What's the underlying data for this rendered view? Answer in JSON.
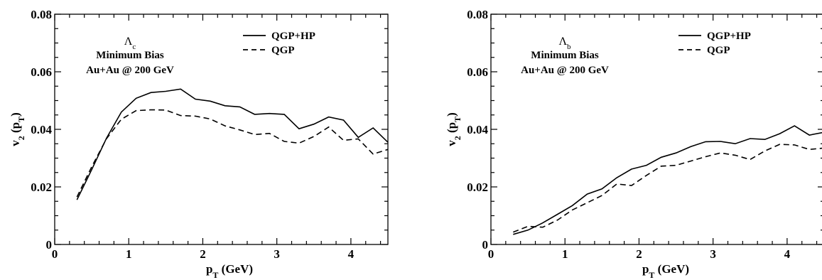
{
  "chart_data": [
    {
      "type": "line",
      "xlabel": "p_T (GeV)",
      "ylabel": "v_2 (p_T)",
      "xlim": [
        0,
        4.5
      ],
      "ylim": [
        0,
        0.08
      ],
      "xticks": [
        "0",
        "1",
        "2",
        "3",
        "4"
      ],
      "yticks": [
        "0",
        "0.02",
        "0.04",
        "0.06",
        "0.08"
      ],
      "grid": false,
      "legend_position": "top-right",
      "annotations": {
        "particle": "Λ",
        "particle_sub": "c",
        "line1": "Minimum Bias",
        "line2": "Au+Au @ 200 GeV"
      },
      "series": [
        {
          "name": "QGP+HP",
          "style": "solid",
          "x": [
            0.3,
            0.5,
            0.7,
            0.9,
            1.1,
            1.3,
            1.5,
            1.7,
            1.9,
            2.1,
            2.3,
            2.5,
            2.7,
            2.9,
            3.1,
            3.3,
            3.5,
            3.7,
            3.9,
            4.1,
            4.3,
            4.5
          ],
          "y": [
            0.0155,
            0.026,
            0.037,
            0.046,
            0.0508,
            0.0528,
            0.0532,
            0.054,
            0.0505,
            0.0498,
            0.0482,
            0.0478,
            0.0452,
            0.0455,
            0.0452,
            0.0402,
            0.0418,
            0.0443,
            0.0432,
            0.0372,
            0.0405,
            0.0355
          ]
        },
        {
          "name": "QGP",
          "style": "dashed",
          "x": [
            0.3,
            0.5,
            0.7,
            0.9,
            1.1,
            1.3,
            1.5,
            1.7,
            1.9,
            2.1,
            2.3,
            2.5,
            2.7,
            2.9,
            3.1,
            3.3,
            3.5,
            3.7,
            3.9,
            4.1,
            4.3,
            4.5
          ],
          "y": [
            0.0165,
            0.027,
            0.0368,
            0.0435,
            0.0465,
            0.0468,
            0.0467,
            0.0448,
            0.0446,
            0.0436,
            0.0412,
            0.0398,
            0.0382,
            0.0386,
            0.0358,
            0.0352,
            0.0375,
            0.0408,
            0.0362,
            0.0367,
            0.0314,
            0.033
          ]
        }
      ]
    },
    {
      "type": "line",
      "xlabel": "p_T (GeV)",
      "ylabel": "v_2 (p_T)",
      "xlim": [
        0,
        4.5
      ],
      "ylim": [
        0,
        0.08
      ],
      "xticks": [
        "0",
        "1",
        "2",
        "3",
        "4"
      ],
      "yticks": [
        "0",
        "0.02",
        "0.04",
        "0.06",
        "0.08"
      ],
      "grid": false,
      "legend_position": "top-right",
      "annotations": {
        "particle": "Λ",
        "particle_sub": "b",
        "line1": "Minimum Bias",
        "line2": "Au+Au @ 200 GeV"
      },
      "series": [
        {
          "name": "QGP+HP",
          "style": "solid",
          "x": [
            0.3,
            0.5,
            0.7,
            0.9,
            1.1,
            1.3,
            1.5,
            1.7,
            1.9,
            2.1,
            2.3,
            2.5,
            2.7,
            2.9,
            3.1,
            3.3,
            3.5,
            3.7,
            3.9,
            4.1,
            4.3,
            4.5
          ],
          "y": [
            0.0035,
            0.005,
            0.0075,
            0.0105,
            0.0135,
            0.0175,
            0.0193,
            0.0232,
            0.0262,
            0.0275,
            0.0303,
            0.0318,
            0.034,
            0.0357,
            0.0358,
            0.035,
            0.0368,
            0.0365,
            0.0385,
            0.0412,
            0.038,
            0.039
          ]
        },
        {
          "name": "QGP",
          "style": "dashed",
          "x": [
            0.3,
            0.5,
            0.7,
            0.9,
            1.1,
            1.3,
            1.5,
            1.7,
            1.9,
            2.1,
            2.3,
            2.5,
            2.7,
            2.9,
            3.1,
            3.3,
            3.5,
            3.7,
            3.9,
            4.1,
            4.3,
            4.5
          ],
          "y": [
            0.0043,
            0.0063,
            0.006,
            0.0085,
            0.012,
            0.0145,
            0.017,
            0.021,
            0.0205,
            0.024,
            0.0272,
            0.0275,
            0.029,
            0.0305,
            0.0318,
            0.031,
            0.0295,
            0.0325,
            0.0348,
            0.0346,
            0.033,
            0.0335
          ]
        }
      ]
    }
  ]
}
